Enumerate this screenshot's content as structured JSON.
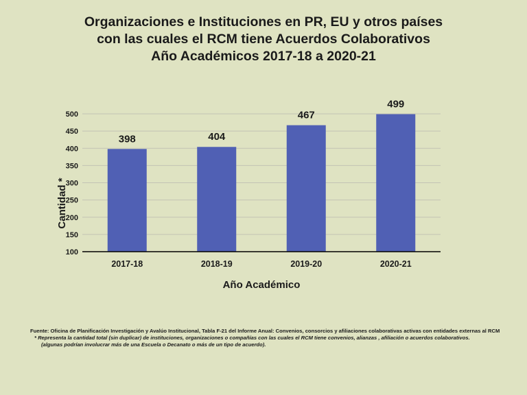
{
  "chart_data": {
    "type": "bar",
    "title_lines": [
      "Organizaciones e Instituciones en PR, EU y otros países",
      "con las cuales el RCM tiene Acuerdos Colaborativos",
      "Año Académicos 2017-18 a 2020-21"
    ],
    "categories": [
      "2017-18",
      "2018-19",
      "2019-20",
      "2020-21"
    ],
    "values": [
      398,
      404,
      467,
      499
    ],
    "xlabel": "Año Académico",
    "ylabel": "Cantidad *",
    "ylim": [
      100,
      500
    ],
    "yticks": [
      100,
      150,
      200,
      250,
      300,
      350,
      400,
      450,
      500
    ],
    "bar_color": "#5060b4",
    "grid": true
  },
  "notes": {
    "source": "Fuente: Oficina de Planificación Investigación y Avalúo Institucional, Tabla F-21 del Informe Anual: Convenios, consorcios y afiliaciones colaborativas activas con entidades externas al RCM",
    "footnote": "*  Representa la cantidad total  (sin duplicar) de instituciones, organizaciones o compañías con las cuales el RCM tiene convenios, alianzas , afiliación o acuerdos colaborativos.",
    "footnote_cont": "(algunas podrían involucrar más de una Escuela o Decanato o más de un tipo de acuerdo)."
  }
}
